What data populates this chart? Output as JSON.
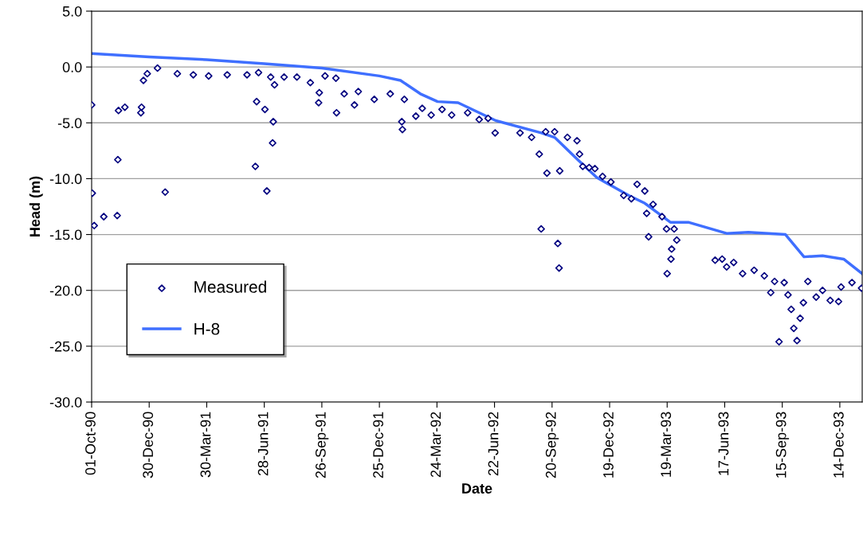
{
  "chart_data": {
    "type": "scatter",
    "xlabel": "Date",
    "ylabel": "Head (m)",
    "xlim": [
      "1990-10-01",
      "1994-01-18"
    ],
    "xticks": [
      {
        "value": "1990-10-01",
        "label": "01-Oct-90"
      },
      {
        "value": "1990-12-30",
        "label": "30-Dec-90"
      },
      {
        "value": "1991-03-30",
        "label": "30-Mar-91"
      },
      {
        "value": "1991-06-28",
        "label": "28-Jun-91"
      },
      {
        "value": "1991-09-26",
        "label": "26-Sep-91"
      },
      {
        "value": "1991-12-25",
        "label": "25-Dec-91"
      },
      {
        "value": "1992-03-24",
        "label": "24-Mar-92"
      },
      {
        "value": "1992-06-22",
        "label": "22-Jun-92"
      },
      {
        "value": "1992-09-20",
        "label": "20-Sep-92"
      },
      {
        "value": "1992-12-19",
        "label": "19-Dec-92"
      },
      {
        "value": "1993-03-19",
        "label": "19-Mar-93"
      },
      {
        "value": "1993-06-17",
        "label": "17-Jun-93"
      },
      {
        "value": "1993-09-15",
        "label": "15-Sep-93"
      },
      {
        "value": "1993-12-14",
        "label": "14-Dec-93"
      }
    ],
    "ylim": [
      -30,
      5
    ],
    "yticks": [
      {
        "value": -30,
        "label": "-30.0"
      },
      {
        "value": -25,
        "label": "-25.0"
      },
      {
        "value": -20,
        "label": "-20.0"
      },
      {
        "value": -15,
        "label": "-15.0"
      },
      {
        "value": -10,
        "label": "-10.0"
      },
      {
        "value": -5,
        "label": "-5.0"
      },
      {
        "value": 0,
        "label": "0.0"
      },
      {
        "value": 5,
        "label": "5.0"
      }
    ],
    "grid": "y",
    "legend": "lower left",
    "series": [
      {
        "name": "Measured",
        "marker": "diamond",
        "color": "#000080",
        "x": [
          "1990-10-01",
          "1990-10-02",
          "1990-10-05",
          "1990-10-20",
          "1990-11-10",
          "1990-11-11",
          "1990-11-12",
          "1990-11-22",
          "1990-12-17",
          "1990-12-18",
          "1990-12-21",
          "1990-12-27",
          "1991-01-12",
          "1991-01-24",
          "1991-02-12",
          "1991-03-09",
          "1991-04-02",
          "1991-05-01",
          "1991-06-01",
          "1991-06-14",
          "1991-06-16",
          "1991-06-19",
          "1991-06-29",
          "1991-07-02",
          "1991-07-08",
          "1991-07-11",
          "1991-07-12",
          "1991-07-14",
          "1991-07-29",
          "1991-08-18",
          "1991-09-08",
          "1991-09-21",
          "1991-09-22",
          "1991-10-01",
          "1991-10-18",
          "1991-10-19",
          "1991-10-31",
          "1991-11-16",
          "1991-11-22",
          "1991-12-17",
          "1992-01-11",
          "1992-01-29",
          "1992-01-30",
          "1992-02-02",
          "1992-02-20",
          "1992-03-01",
          "1992-03-15",
          "1992-04-01",
          "1992-04-16",
          "1992-05-11",
          "1992-05-29",
          "1992-06-12",
          "1992-06-23",
          "1992-08-01",
          "1992-08-19",
          "1992-08-31",
          "1992-09-03",
          "1992-09-10",
          "1992-09-12",
          "1992-09-24",
          "1992-09-29",
          "1992-10-01",
          "1992-10-02",
          "1992-10-14",
          "1992-10-29",
          "1992-11-02",
          "1992-11-07",
          "1992-11-17",
          "1992-11-26",
          "1992-12-08",
          "1992-12-21",
          "1993-01-10",
          "1993-01-22",
          "1993-01-31",
          "1993-02-12",
          "1993-02-15",
          "1993-02-18",
          "1993-02-25",
          "1993-03-11",
          "1993-03-18",
          "1993-03-19",
          "1993-03-25",
          "1993-03-26",
          "1993-03-30",
          "1993-04-03",
          "1993-06-02",
          "1993-06-13",
          "1993-06-20",
          "1993-07-01",
          "1993-07-15",
          "1993-08-02",
          "1993-08-18",
          "1993-08-28",
          "1993-09-03",
          "1993-09-10",
          "1993-09-18",
          "1993-09-24",
          "1993-09-29",
          "1993-10-03",
          "1993-10-08",
          "1993-10-13",
          "1993-10-18",
          "1993-10-25",
          "1993-11-07",
          "1993-11-17",
          "1993-11-29",
          "1993-12-12",
          "1993-12-16",
          "1994-01-02",
          "1994-01-17"
        ],
        "values": [
          -3.4,
          -11.3,
          -14.2,
          -13.4,
          -13.3,
          -8.3,
          -3.9,
          -3.6,
          -4.1,
          -3.6,
          -1.2,
          -0.6,
          -0.1,
          -11.2,
          -0.6,
          -0.7,
          -0.8,
          -0.7,
          -0.7,
          -8.9,
          -3.1,
          -0.5,
          -3.8,
          -11.1,
          -0.9,
          -6.8,
          -4.9,
          -1.6,
          -0.9,
          -0.9,
          -1.4,
          -3.2,
          -2.3,
          -0.8,
          -1.0,
          -4.1,
          -2.4,
          -3.4,
          -2.2,
          -2.9,
          -2.4,
          -4.9,
          -5.6,
          -2.9,
          -4.4,
          -3.7,
          -4.3,
          -3.8,
          -4.3,
          -4.1,
          -4.7,
          -4.6,
          -5.9,
          -5.9,
          -6.3,
          -7.8,
          -14.5,
          -5.8,
          -9.5,
          -5.8,
          -15.8,
          -18.0,
          -9.3,
          -6.3,
          -6.6,
          -7.8,
          -8.9,
          -9.0,
          -9.1,
          -9.8,
          -10.3,
          -11.5,
          -11.8,
          -10.5,
          -11.1,
          -13.1,
          -15.2,
          -12.3,
          -13.4,
          -14.5,
          -18.5,
          -17.2,
          -16.3,
          -14.5,
          -15.5,
          -17.3,
          -17.2,
          -17.9,
          -17.5,
          -18.5,
          -18.2,
          -18.7,
          -20.2,
          -19.2,
          -24.6,
          -19.3,
          -20.4,
          -21.7,
          -23.4,
          -24.5,
          -22.5,
          -21.1,
          -19.2,
          -20.6,
          -20.0,
          -20.9,
          -21.0,
          -19.7,
          -19.3,
          -19.8
        ]
      },
      {
        "name": "H-8",
        "type": "line",
        "marker": "none",
        "color": "#3f6fff",
        "x": [
          "1990-10-01",
          "1990-12-30",
          "1991-03-30",
          "1991-06-28",
          "1991-09-26",
          "1991-12-25",
          "1992-01-27",
          "1992-02-27",
          "1992-03-25",
          "1992-04-26",
          "1992-06-24",
          "1992-09-03",
          "1992-09-24",
          "1992-11-01",
          "1992-11-29",
          "1993-01-18",
          "1993-02-12",
          "1993-03-24",
          "1993-04-21",
          "1993-06-20",
          "1993-07-24",
          "1993-09-20",
          "1993-10-19",
          "1993-11-17",
          "1993-12-20",
          "1994-01-18"
        ],
        "values": [
          1.2,
          0.9,
          0.65,
          0.3,
          -0.1,
          -0.8,
          -1.2,
          -2.4,
          -3.1,
          -3.2,
          -4.8,
          -5.9,
          -6.3,
          -8.4,
          -9.9,
          -11.5,
          -12.2,
          -13.9,
          -13.9,
          -14.9,
          -14.8,
          -15.0,
          -17.0,
          -16.9,
          -17.2,
          -18.5
        ]
      }
    ]
  }
}
